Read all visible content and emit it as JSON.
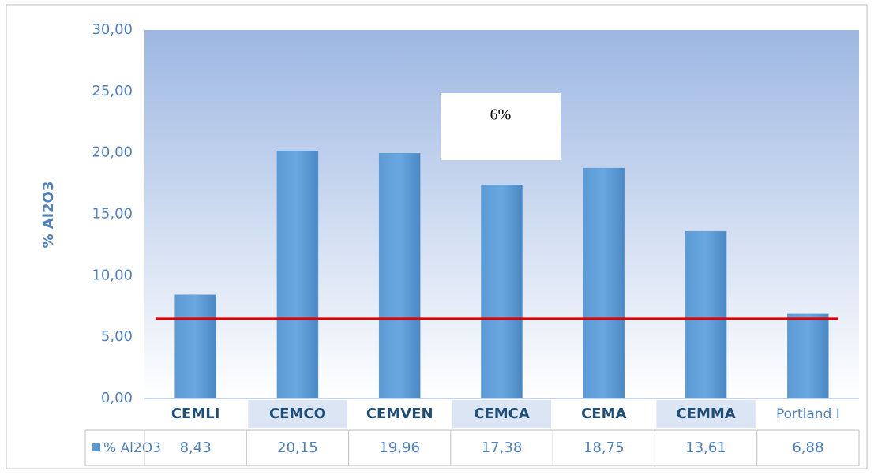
{
  "chart_data": {
    "type": "bar",
    "y_label": "% Al2O3",
    "annotation": "6%",
    "categories": [
      "CEMLI",
      "CEMCO",
      "CEMVEN",
      "CEMCA",
      "CEMA",
      "CEMMA",
      "Portland I"
    ],
    "series": [
      {
        "name": "% Al2O3",
        "color": "#5b9bd5",
        "values": [
          8.43,
          20.15,
          19.96,
          17.38,
          18.75,
          13.61,
          6.88
        ],
        "value_labels": [
          "8,43",
          "20,15",
          "19,96",
          "17,38",
          "18,75",
          "13,61",
          "6,88"
        ]
      }
    ],
    "ylim": [
      0,
      30
    ],
    "yticks": [
      {
        "value": 0,
        "label": "0,00"
      },
      {
        "value": 5,
        "label": "5,00"
      },
      {
        "value": 10,
        "label": "10,00"
      },
      {
        "value": 15,
        "label": "15,00"
      },
      {
        "value": 20,
        "label": "20,00"
      },
      {
        "value": 25,
        "label": "25,00"
      },
      {
        "value": 30,
        "label": "30,00"
      }
    ],
    "reference_line": 6.5,
    "reference_color": "#e00000"
  }
}
